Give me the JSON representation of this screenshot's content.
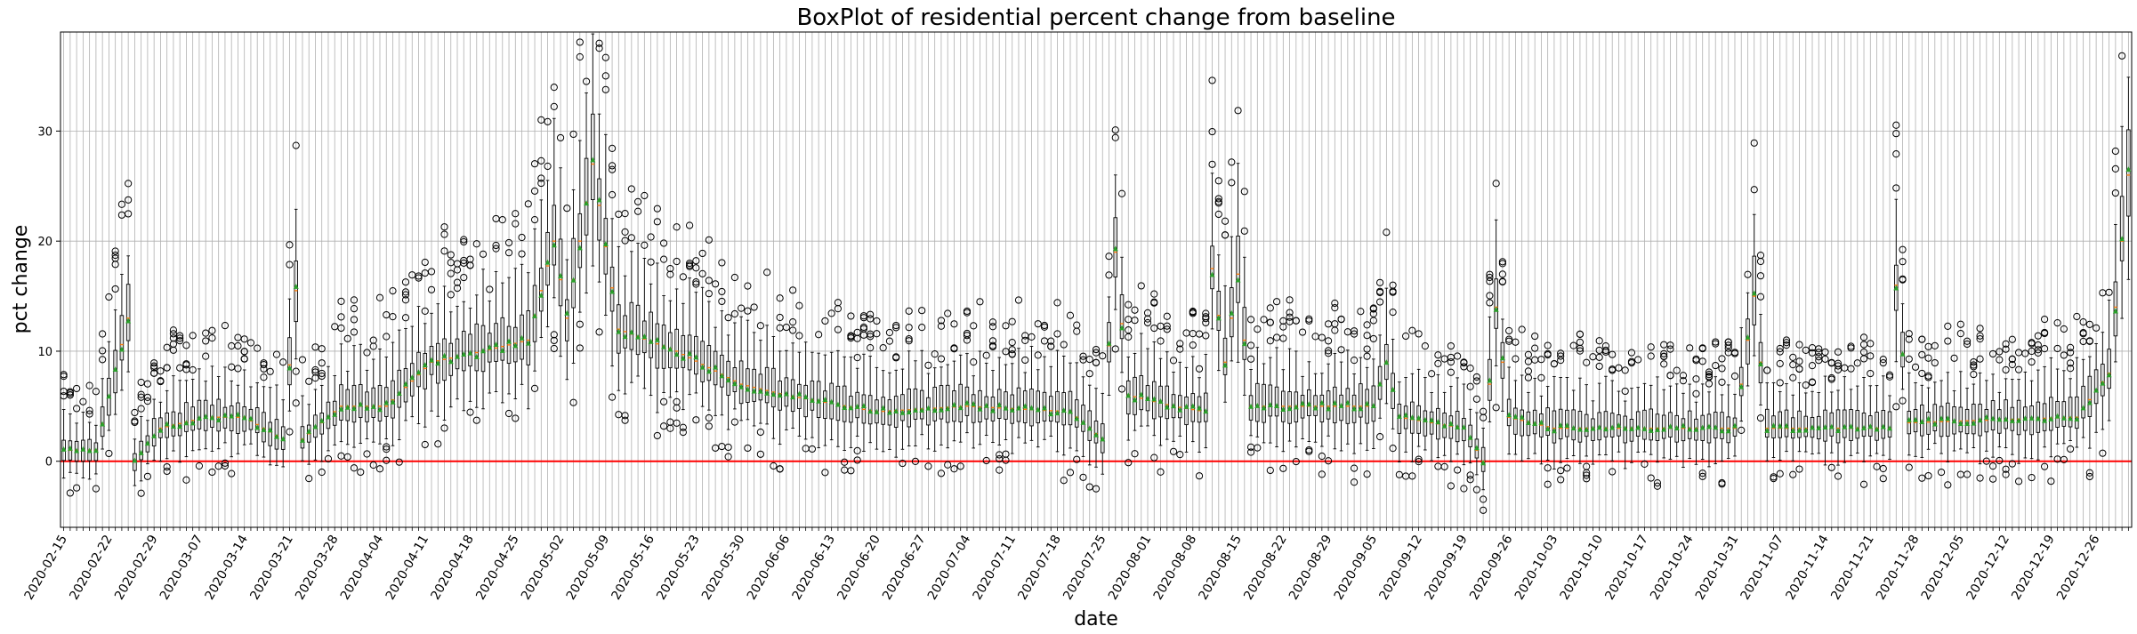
{
  "chart_data": {
    "type": "box",
    "title": "BoxPlot of residential percent change from baseline",
    "xlabel": "date",
    "ylabel": "pct change",
    "ylim": [
      -6,
      39
    ],
    "yticks": [
      0,
      10,
      20,
      30
    ],
    "grid": true,
    "baseline": {
      "y": 0,
      "color": "#ff0000"
    },
    "colors": {
      "box": "#000000",
      "median": "#ff7f0e",
      "mean": "#2ca02c",
      "flier": "#000000",
      "baseline": "#ff0000"
    },
    "start_date": "2020-02-15",
    "end_date": "2020-12-31",
    "labeled_dates": [
      "2020-02-15",
      "2020-02-22",
      "2020-02-29",
      "2020-03-07",
      "2020-03-14",
      "2020-03-21",
      "2020-03-28",
      "2020-04-04",
      "2020-04-11",
      "2020-04-18",
      "2020-04-25",
      "2020-05-02",
      "2020-05-09",
      "2020-05-16",
      "2020-05-23",
      "2020-05-30",
      "2020-06-06",
      "2020-06-13",
      "2020-06-20",
      "2020-06-27",
      "2020-07-04",
      "2020-07-11",
      "2020-07-18",
      "2020-07-25",
      "2020-08-01",
      "2020-08-08",
      "2020-08-15",
      "2020-08-22",
      "2020-08-29",
      "2020-09-05",
      "2020-09-12",
      "2020-09-19",
      "2020-09-26",
      "2020-10-03",
      "2020-10-10",
      "2020-10-17",
      "2020-10-24",
      "2020-10-31",
      "2020-11-07",
      "2020-11-14",
      "2020-11-21",
      "2020-11-28",
      "2020-12-05",
      "2020-12-12",
      "2020-12-19",
      "2020-12-26"
    ],
    "median_anchors": [
      [
        "2020-02-15",
        1
      ],
      [
        "2020-02-20",
        1
      ],
      [
        "2020-02-25",
        13
      ],
      [
        "2020-02-26",
        0
      ],
      [
        "2020-03-01",
        3
      ],
      [
        "2020-03-08",
        4
      ],
      [
        "2020-03-14",
        4
      ],
      [
        "2020-03-20",
        2
      ],
      [
        "2020-03-22",
        15.5
      ],
      [
        "2020-03-23",
        2
      ],
      [
        "2020-03-29",
        5
      ],
      [
        "2020-04-05",
        5
      ],
      [
        "2020-04-12",
        9
      ],
      [
        "2020-04-20",
        10
      ],
      [
        "2020-04-27",
        11
      ],
      [
        "2020-05-01",
        20
      ],
      [
        "2020-05-03",
        13
      ],
      [
        "2020-05-07",
        27
      ],
      [
        "2020-05-11",
        12
      ],
      [
        "2020-05-20",
        10
      ],
      [
        "2020-05-30",
        7
      ],
      [
        "2020-06-06",
        6
      ],
      [
        "2020-06-20",
        4.5
      ],
      [
        "2020-07-04",
        5
      ],
      [
        "2020-07-20",
        4.5
      ],
      [
        "2020-07-25",
        2
      ],
      [
        "2020-07-27",
        19
      ],
      [
        "2020-07-29",
        6
      ],
      [
        "2020-08-05",
        5
      ],
      [
        "2020-08-10",
        4.5
      ],
      [
        "2020-08-11",
        17.5
      ],
      [
        "2020-08-13",
        9
      ],
      [
        "2020-08-15",
        17
      ],
      [
        "2020-08-17",
        5
      ],
      [
        "2020-09-05",
        5
      ],
      [
        "2020-09-07",
        9
      ],
      [
        "2020-09-09",
        4
      ],
      [
        "2020-09-19",
        3
      ],
      [
        "2020-09-22",
        0
      ],
      [
        "2020-09-24",
        14
      ],
      [
        "2020-09-26",
        4
      ],
      [
        "2020-10-03",
        3
      ],
      [
        "2020-10-31",
        3
      ],
      [
        "2020-11-03",
        15
      ],
      [
        "2020-11-05",
        3
      ],
      [
        "2020-11-24",
        3
      ],
      [
        "2020-11-25",
        16
      ],
      [
        "2020-11-27",
        3.5
      ],
      [
        "2020-12-23",
        4
      ],
      [
        "2020-12-28",
        8
      ],
      [
        "2020-12-29",
        14
      ],
      [
        "2020-12-30",
        20
      ],
      [
        "2020-12-31",
        26
      ]
    ]
  }
}
